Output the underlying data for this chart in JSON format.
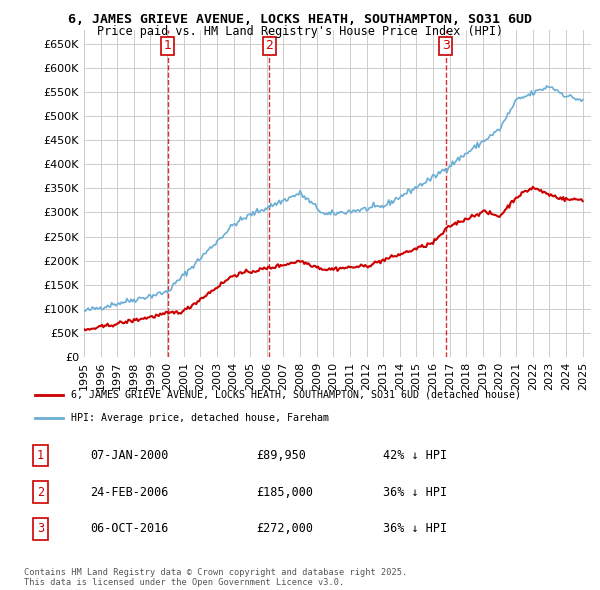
{
  "title_line1": "6, JAMES GRIEVE AVENUE, LOCKS HEATH, SOUTHAMPTON, SO31 6UD",
  "title_line2": "Price paid vs. HM Land Registry's House Price Index (HPI)",
  "hpi_color": "#6aaed6",
  "price_color": "#cc0000",
  "background_color": "#ffffff",
  "grid_color": "#cccccc",
  "ylim": [
    0,
    680000
  ],
  "yticks": [
    0,
    50000,
    100000,
    150000,
    200000,
    250000,
    300000,
    350000,
    400000,
    450000,
    500000,
    550000,
    600000,
    650000
  ],
  "xlim_start": 1995.0,
  "xlim_end": 2025.5,
  "transactions": [
    {
      "label": "1",
      "date_num": 2000.03,
      "price": 89950
    },
    {
      "label": "2",
      "date_num": 2006.15,
      "price": 185000
    },
    {
      "label": "3",
      "date_num": 2016.77,
      "price": 272000
    }
  ],
  "legend_price_label": "6, JAMES GRIEVE AVENUE, LOCKS HEATH, SOUTHAMPTON, SO31 6UD (detached house)",
  "legend_hpi_label": "HPI: Average price, detached house, Fareham",
  "table_entries": [
    {
      "num": "1",
      "date": "07-JAN-2000",
      "price": "£89,950",
      "hpi": "42% ↓ HPI"
    },
    {
      "num": "2",
      "date": "24-FEB-2006",
      "price": "£185,000",
      "hpi": "36% ↓ HPI"
    },
    {
      "num": "3",
      "date": "06-OCT-2016",
      "price": "£272,000",
      "hpi": "36% ↓ HPI"
    }
  ],
  "footer": "Contains HM Land Registry data © Crown copyright and database right 2025.\nThis data is licensed under the Open Government Licence v3.0."
}
